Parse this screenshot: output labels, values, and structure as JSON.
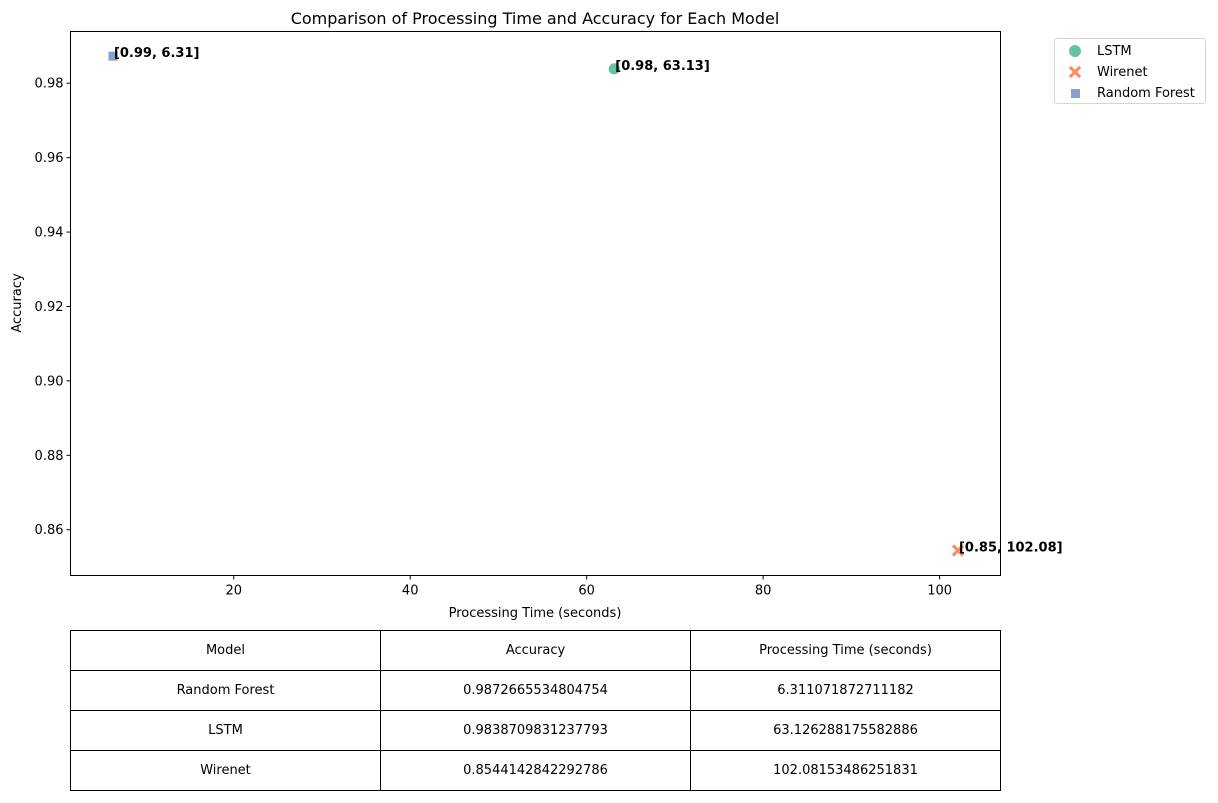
{
  "chart_data": {
    "type": "scatter",
    "title": "Comparison of Processing Time and Accuracy for Each Model",
    "xlabel": "Processing Time (seconds)",
    "ylabel": "Accuracy",
    "xlim": [
      1.5,
      106.9
    ],
    "ylim": [
      0.8477,
      0.9939
    ],
    "xticks": [
      20,
      40,
      60,
      80,
      100
    ],
    "yticks": [
      0.86,
      0.88,
      0.9,
      0.92,
      0.94,
      0.96,
      0.98
    ],
    "xtick_labels": [
      "20",
      "40",
      "60",
      "80",
      "100"
    ],
    "ytick_labels": [
      "0.86",
      "0.88",
      "0.90",
      "0.92",
      "0.94",
      "0.96",
      "0.98"
    ],
    "grid": false,
    "legend_position": "outside-top-right",
    "series": [
      {
        "name": "LSTM",
        "marker": "circle",
        "color": "#66c2a5",
        "x": 63.126288175582886,
        "y": 0.9838709831237793,
        "label": "[0.98, 63.13]"
      },
      {
        "name": "Wirenet",
        "marker": "x",
        "color": "#fc8d62",
        "x": 102.08153486251831,
        "y": 0.8544142842292786,
        "label": "[0.85, 102.08]"
      },
      {
        "name": "Random Forest",
        "marker": "square",
        "color": "#8da0cb",
        "x": 6.311071872711182,
        "y": 0.9872665534804754,
        "label": "[0.99, 6.31]"
      }
    ]
  },
  "table": {
    "headers": [
      "Model",
      "Accuracy",
      "Processing Time (seconds)"
    ],
    "rows": [
      [
        "Random Forest",
        "0.9872665534804754",
        "6.311071872711182"
      ],
      [
        "LSTM",
        "0.9838709831237793",
        "63.126288175582886"
      ],
      [
        "Wirenet",
        "0.8544142842292786",
        "102.08153486251831"
      ]
    ]
  }
}
